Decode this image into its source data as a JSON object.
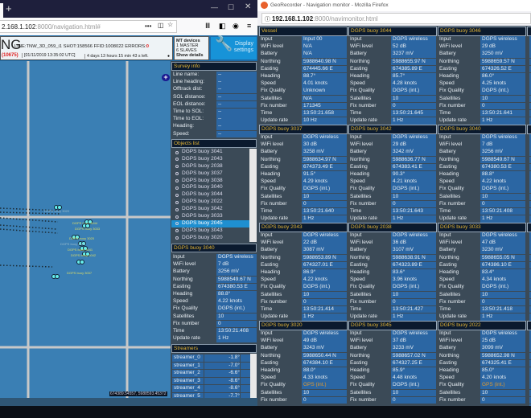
{
  "left_window": {
    "url_host": "2.168.1.102",
    "url_rest": ":8000/navigation.html#",
    "header": {
      "title_fragment": "NG",
      "line": "LINE:TNW_3D_059_i1 SHOT:158566 FFID:1008022 ERRORS:",
      "errors": "0",
      "count": "(10675)",
      "datetime": "[01/11/2019 13:35:02 UTC]",
      "time_left": "4 days 13 hours 15 min 43 s left.",
      "mt_devices": "MT devices",
      "master": "1 MASTER",
      "slaves": "6 SLAVES",
      "show_details": "Show details",
      "display_settings": "Display settings"
    },
    "map": {
      "buoy_labels": [
        "DGPS buoy 3020",
        "DGPS buoy 3044",
        "DGPS buoy 3033",
        "DGPS buoy 3020",
        "DGPS buoy 2045",
        "DGPS buoy 3041",
        "DGPS buoy 3042",
        "DGPS buoy 3037"
      ],
      "coordinates": "674389.54557, 5988593.45372"
    },
    "survey_info": {
      "title": "Survey info",
      "rows": [
        {
          "label": "Line name:",
          "value": "--"
        },
        {
          "label": "Line heading:",
          "value": "--"
        },
        {
          "label": "Offtrack dist:",
          "value": "--"
        },
        {
          "label": "SOL distance:",
          "value": "--"
        },
        {
          "label": "EOL distance:",
          "value": "--"
        },
        {
          "label": "Time to SOL:",
          "value": "--"
        },
        {
          "label": "Time to EOL:",
          "value": "--"
        },
        {
          "label": "Heading:",
          "value": "--"
        },
        {
          "label": "Speed:",
          "value": "--"
        }
      ]
    },
    "objects_list": {
      "title": "Objects list",
      "items": [
        "DGPS buoy 3041",
        "DGPS buoy 2043",
        "DGPS buoy 2038",
        "DGPS buoy 3037",
        "DGPS buoy 3038",
        "DGPS buoy 3040",
        "DGPS buoy 3044",
        "DGPS buoy 2022",
        "DGPS buoy 3042",
        "DGPS buoy 3033",
        "DGPS buoy 2045",
        "DGPS buoy 3043",
        "DGPS buoy 3020"
      ],
      "selected": "DGPS buoy 2045"
    },
    "detail": {
      "title": "DGPS buoy 3040",
      "values": [
        "DGPS wireless",
        "7 dB",
        "3256 mV",
        "5988549.67 N",
        "674380.53 E",
        "88.8°",
        "4.22 knots",
        "DGPS (int.)",
        "10",
        "0",
        "13:50:21.408",
        "1 Hz"
      ]
    },
    "streamers": {
      "title": "Streamers",
      "rows": [
        {
          "name": "streamer_0",
          "value": "-1.8°"
        },
        {
          "name": "streamer_1",
          "value": "-7.0°"
        },
        {
          "name": "streamer_2",
          "value": "-6.6°"
        },
        {
          "name": "streamer_3",
          "value": "-8.6°"
        },
        {
          "name": "streamer_4",
          "value": "-8.6°"
        },
        {
          "name": "streamer_5",
          "value": "-7.7°"
        }
      ]
    }
  },
  "right_window": {
    "title": "GeoRecorder - Navigation monitor - Mozilla Firefox",
    "url_host": "192.168.1.102",
    "url_rest": ":8000/navimonitor.html",
    "row_labels": [
      "Input",
      "WiFi level",
      "Battery",
      "Northing",
      "Easting",
      "Heading",
      "Speed",
      "Fix Quality",
      "Satellites",
      "Fix number",
      "Time",
      "Update rate"
    ],
    "panels": [
      {
        "title": "Vessel",
        "values": [
          "Input 00",
          "N/A",
          "N/A",
          "5988640.98 N",
          "674445.66 E",
          "88.7°",
          "4.01 knots",
          "Unknown",
          "N/A",
          "171345",
          "13:50:21.658",
          "10 Hz"
        ]
      },
      {
        "title": "DGPS buoy 3044",
        "values": [
          "DGPS wireless",
          "52 dB",
          "3237 mV",
          "5988655.97 N",
          "674385.89 E",
          "85.7°",
          "4.28 knots",
          "DGPS (int.)",
          "10",
          "0",
          "13:50:21.645",
          "1 Hz"
        ]
      },
      {
        "title": "DGPS buoy 3046",
        "values": [
          "DGPS wireless",
          "29 dB",
          "3250 mV",
          "5988659.57 N",
          "674326.52 E",
          "86.0°",
          "4.25 knots",
          "DGPS (int.)",
          "10",
          "0",
          "13:50:21.641",
          "1 Hz"
        ]
      },
      {
        "title": "DGPS buoy 3037",
        "values": [
          "DGPS wireless",
          "30 dB",
          "3258 mV",
          "5988634.97 N",
          "674373.49 E",
          "91.5°",
          "4.29 knots",
          "DGPS (int.)",
          "10",
          "0",
          "13:50:21.640",
          "1 Hz"
        ]
      },
      {
        "title": "DGPS buoy 3042",
        "values": [
          "DGPS wireless",
          "29 dB",
          "3242 mV",
          "5988636.77 N",
          "674383.41 E",
          "90.3°",
          "4.21 knots",
          "DGPS (int.)",
          "10",
          "0",
          "13:50:21.643",
          "1 Hz"
        ]
      },
      {
        "title": "DGPS buoy 3040",
        "values": [
          "DGPS wireless",
          "7 dB",
          "3256 mV",
          "5988549.67 N",
          "674380.53 E",
          "88.8°",
          "4.22 knots",
          "DGPS (int.)",
          "10",
          "0",
          "13:50:21.408",
          "1 Hz"
        ]
      },
      {
        "title": "DGPS buoy 2043",
        "values": [
          "DGPS wireless",
          "22 dB",
          "3087 mV",
          "5988653.89 N",
          "674327.01 E",
          "86.9°",
          "4.22 knots",
          "DGPS (int.)",
          "10",
          "0",
          "13:50:21.414",
          "1 Hz"
        ]
      },
      {
        "title": "DGPS buoy 2038",
        "values": [
          "DGPS wireless",
          "36 dB",
          "3107 mV",
          "5988638.91 N",
          "674323.89 E",
          "83.6°",
          "3.96 knots",
          "DGPS (int.)",
          "10",
          "0",
          "13:50:21.427",
          "1 Hz"
        ]
      },
      {
        "title": "DGPS buoy 3033",
        "values": [
          "DGPS wireless",
          "47 dB",
          "3230 mV",
          "5988655.05 N",
          "674386.10 E",
          "83.4°",
          "4.34 knots",
          "DGPS (int.)",
          "10",
          "0",
          "13:50:21.418",
          "1 Hz"
        ]
      },
      {
        "title": "DGPS buoy 3020",
        "values": [
          "DGPS wireless",
          "49 dB",
          "3243 mV",
          "5988650.44 N",
          "674384.10 E",
          "88.0°",
          "4.33 knots",
          "GPS (int.)",
          "10",
          "0"
        ]
      },
      {
        "title": "DGPS buoy 3045",
        "values": [
          "DGPS wireless",
          "37 dB",
          "3233 mV",
          "5988657.02 N",
          "674327.25 E",
          "85.9°",
          "4.48 knots",
          "DGPS (int.)",
          "10",
          "0"
        ]
      },
      {
        "title": "DGPS buoy 2022",
        "values": [
          "DGPS wireless",
          "25 dB",
          "3099 mV",
          "5988652.98 N",
          "674325.41 E",
          "85.0°",
          "4.20 knots",
          "GPS (int.)",
          "10",
          "0"
        ]
      }
    ]
  },
  "colors": {
    "accent_title": "#e5b534",
    "value_cell": "#2b66a3",
    "gps_warning": "#e39a2d",
    "error": "#e02020",
    "selected": "#1f8fd0"
  }
}
